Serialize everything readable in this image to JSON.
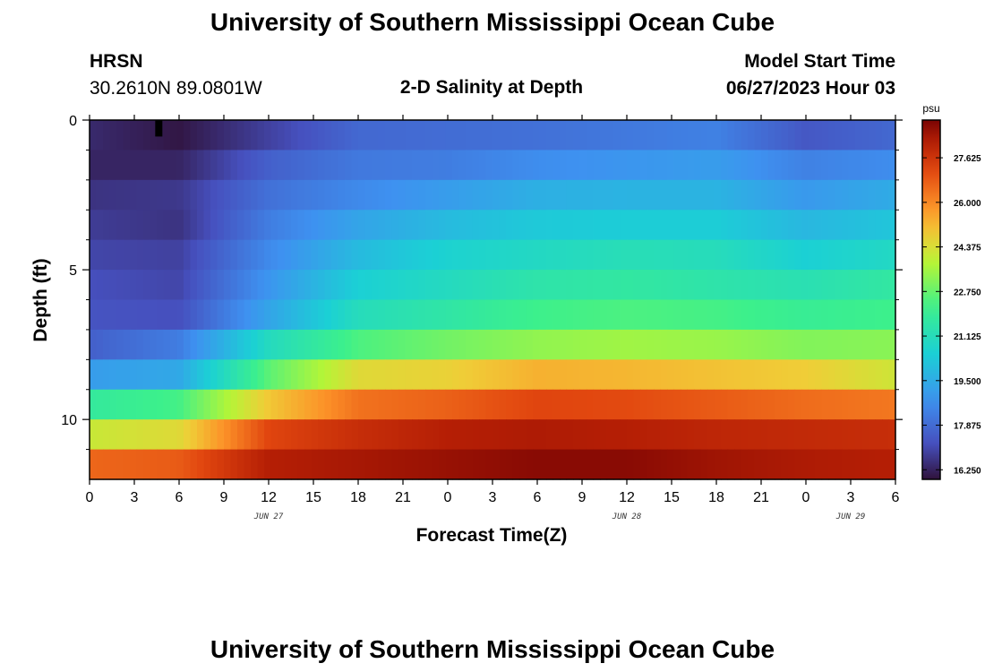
{
  "title": "University of Southern Mississippi Ocean Cube",
  "footer_title": "University of Southern Mississippi Ocean Cube",
  "station": {
    "name": "HRSN",
    "coords": "30.2610N  89.0801W"
  },
  "subtitle": "2-D Salinity at Depth",
  "model_start": {
    "label": "Model Start Time",
    "value": "06/27/2023 Hour 03"
  },
  "chart_data": {
    "type": "heatmap",
    "variable": "Salinity",
    "units": "psu",
    "xlabel": "Forecast Time(Z)",
    "ylabel": "Depth (ft)",
    "x_range_hours": [
      0,
      54
    ],
    "x_ticks": [
      {
        "hour": 0,
        "label": "0"
      },
      {
        "hour": 3,
        "label": "3"
      },
      {
        "hour": 6,
        "label": "6"
      },
      {
        "hour": 9,
        "label": "9"
      },
      {
        "hour": 12,
        "label": "12"
      },
      {
        "hour": 15,
        "label": "15"
      },
      {
        "hour": 18,
        "label": "18"
      },
      {
        "hour": 21,
        "label": "21"
      },
      {
        "hour": 24,
        "label": "0"
      },
      {
        "hour": 27,
        "label": "3"
      },
      {
        "hour": 30,
        "label": "6"
      },
      {
        "hour": 33,
        "label": "9"
      },
      {
        "hour": 36,
        "label": "12"
      },
      {
        "hour": 39,
        "label": "15"
      },
      {
        "hour": 42,
        "label": "18"
      },
      {
        "hour": 45,
        "label": "21"
      },
      {
        "hour": 48,
        "label": "0"
      },
      {
        "hour": 51,
        "label": "3"
      },
      {
        "hour": 54,
        "label": "6"
      }
    ],
    "date_labels": [
      {
        "hour": 12,
        "label": "JUN 27"
      },
      {
        "hour": 36,
        "label": "JUN 28"
      },
      {
        "hour": 51,
        "label": "JUN 29"
      }
    ],
    "y_range_ft": [
      0,
      12
    ],
    "y_ticks": [
      0,
      5,
      10
    ],
    "y_minor_ticks": [
      1,
      2,
      3,
      4,
      6,
      7,
      8,
      9,
      11
    ],
    "colorbar": {
      "min": 15.9,
      "max": 29.0,
      "ticks": [
        16.25,
        17.875,
        19.5,
        21.125,
        22.75,
        24.375,
        26.0,
        27.625
      ],
      "tick_labels": [
        "16.250",
        "17.875",
        "19.500",
        "21.125",
        "22.750",
        "24.375",
        "26.000",
        "27.625"
      ]
    },
    "layer_centers_ft": [
      0.5,
      1.5,
      2.5,
      3.5,
      4.5,
      5.5,
      6.5,
      7.5,
      8.5,
      9.5,
      10.5,
      11.5
    ],
    "time_columns_hours": [
      0,
      6,
      12,
      18,
      24,
      30,
      36,
      42,
      48,
      54
    ],
    "salinity_grid": [
      [
        16.4,
        16.0,
        16.9,
        17.8,
        17.9,
        18.0,
        18.2,
        18.4,
        17.4,
        17.8
      ],
      [
        16.3,
        16.3,
        17.6,
        18.2,
        18.3,
        18.7,
        18.9,
        19.1,
        18.4,
        18.7
      ],
      [
        16.6,
        16.7,
        18.0,
        18.6,
        19.1,
        19.6,
        19.7,
        19.7,
        19.0,
        19.5
      ],
      [
        16.8,
        16.6,
        18.3,
        19.3,
        19.9,
        20.3,
        20.4,
        20.4,
        19.8,
        20.2
      ],
      [
        17.0,
        16.9,
        18.6,
        19.9,
        20.6,
        20.9,
        21.2,
        21.1,
        20.5,
        20.9
      ],
      [
        17.2,
        17.0,
        18.9,
        20.5,
        21.0,
        21.5,
        21.7,
        21.5,
        21.3,
        21.7
      ],
      [
        17.3,
        17.2,
        19.3,
        21.1,
        21.6,
        22.2,
        22.4,
        22.3,
        22.0,
        22.2
      ],
      [
        17.6,
        18.3,
        21.0,
        22.4,
        22.9,
        23.3,
        23.5,
        23.4,
        23.1,
        23.2
      ],
      [
        19.1,
        19.4,
        22.6,
        24.5,
        24.7,
        25.3,
        25.2,
        25.0,
        24.8,
        24.2
      ],
      [
        21.8,
        22.3,
        24.9,
        26.4,
        26.7,
        27.2,
        27.1,
        26.8,
        26.5,
        26.3
      ],
      [
        24.1,
        24.5,
        27.2,
        27.8,
        28.2,
        28.3,
        28.2,
        28.0,
        27.9,
        27.8
      ],
      [
        26.6,
        26.8,
        28.2,
        28.4,
        28.6,
        28.8,
        28.8,
        28.5,
        28.3,
        28.2
      ]
    ]
  },
  "colors": {
    "frame": "#000000",
    "background": "#ffffff",
    "marker": "#000000"
  }
}
